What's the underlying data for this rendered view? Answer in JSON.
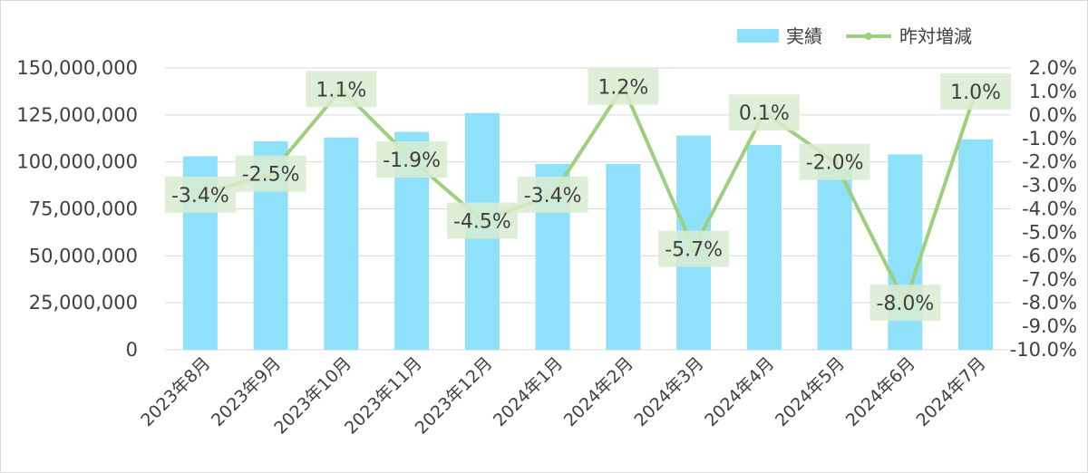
{
  "chart_data": {
    "type": "bar",
    "categories": [
      "2023年8月",
      "2023年9月",
      "2023年10月",
      "2023年11月",
      "2023年12月",
      "2024年1月",
      "2024年2月",
      "2024年3月",
      "2024年4月",
      "2024年5月",
      "2024年6月",
      "2024年7月"
    ],
    "series": [
      {
        "name": "実績",
        "type": "bar",
        "axis": "left",
        "color": "#8ee0fb",
        "values": [
          103000000,
          111000000,
          113000000,
          116000000,
          126000000,
          99000000,
          99000000,
          114000000,
          109000000,
          96000000,
          104000000,
          112000000
        ]
      },
      {
        "name": "昨対増減",
        "type": "line",
        "axis": "right",
        "color": "#9dcf7c",
        "values": [
          -3.4,
          -2.5,
          1.1,
          -1.9,
          -4.5,
          -3.4,
          1.2,
          -5.7,
          0.1,
          -2.0,
          -8.0,
          1.0
        ],
        "data_labels": [
          "-3.4%",
          "-2.5%",
          "1.1%",
          "-1.9%",
          "-4.5%",
          "-3.4%",
          "1.2%",
          "-5.7%",
          "0.1%",
          "-2.0%",
          "-8.0%",
          "1.0%"
        ]
      }
    ],
    "y_left": {
      "ylim": [
        0,
        150000000
      ],
      "ticks": [
        0,
        25000000,
        50000000,
        75000000,
        100000000,
        125000000,
        150000000
      ],
      "tick_labels": [
        "0",
        "25,000,000",
        "50,000,000",
        "75,000,000",
        "100,000,000",
        "125,000,000",
        "150,000,000"
      ]
    },
    "y_right": {
      "ylim": [
        -10.0,
        2.0
      ],
      "ticks": [
        2.0,
        1.0,
        0.0,
        -1.0,
        -2.0,
        -3.0,
        -4.0,
        -5.0,
        -6.0,
        -7.0,
        -8.0,
        -9.0,
        -10.0
      ],
      "tick_labels": [
        "2.0%",
        "1.0%",
        "0.0%",
        "-1.0%",
        "-2.0%",
        "-3.0%",
        "-4.0%",
        "-5.0%",
        "-6.0%",
        "-7.0%",
        "-8.0%",
        "-9.0%",
        "-10.0%"
      ]
    },
    "grid": true,
    "legend": {
      "position": "top-right",
      "entries": [
        "実績",
        "昨対増減"
      ]
    },
    "label_background": "#d9ecd0"
  }
}
